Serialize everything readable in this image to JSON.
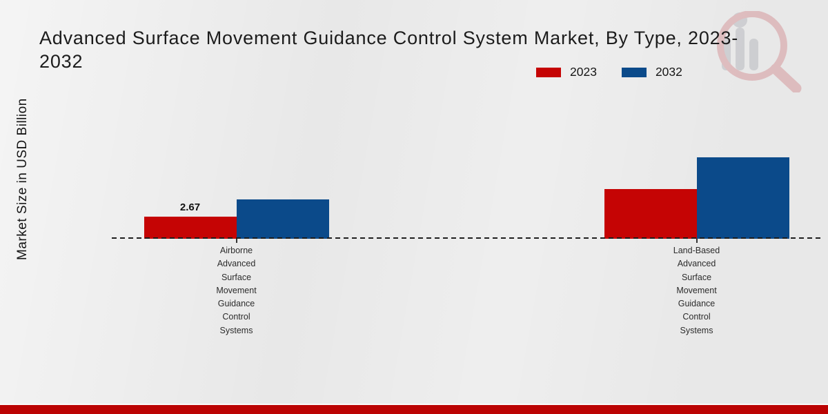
{
  "title": {
    "line1": "Advanced Surface Movement Guidance Control System Market, By Type, 2023-",
    "line2": "2032"
  },
  "y_axis_label": "Market Size in USD Billion",
  "legend": {
    "items": [
      {
        "label": "2023",
        "color": "#c50404"
      },
      {
        "label": "2032",
        "color": "#0b4a8a"
      }
    ]
  },
  "watermark": {
    "name": "market-research-future-logo",
    "ring_color": "#c34f55",
    "bar_color": "#8b8f98"
  },
  "footer": {
    "band_color": "#bb0303"
  },
  "chart_data": {
    "type": "bar",
    "title": "Advanced Surface Movement Guidance Control System Market, By Type, 2023-2032",
    "xlabel": "",
    "ylabel": "Market Size in USD Billion",
    "unit": "USD Billion",
    "categories": [
      "Airborne Advanced Surface Movement Guidance Control Systems",
      "Land-Based Advanced Surface Movement Guidance Control Systems"
    ],
    "category_label_lines": [
      [
        "Airborne",
        "Advanced",
        "Surface",
        "Movement",
        "Guidance",
        "Control",
        "Systems"
      ],
      [
        "Land-Based",
        "Advanced",
        "Surface",
        "Movement",
        "Guidance",
        "Control",
        "Systems"
      ]
    ],
    "series": [
      {
        "name": "2023",
        "color": "#c50404",
        "values": [
          2.67,
          6.1
        ]
      },
      {
        "name": "2032",
        "color": "#0b4a8a",
        "values": [
          4.8,
          9.9
        ]
      }
    ],
    "value_labels": [
      {
        "series_index": 0,
        "category_index": 0,
        "text": "2.67"
      }
    ],
    "baseline": {
      "value": 0,
      "style": "dashed"
    },
    "grid": false,
    "legend_position": "top-right",
    "ylim": [
      0,
      12
    ]
  }
}
